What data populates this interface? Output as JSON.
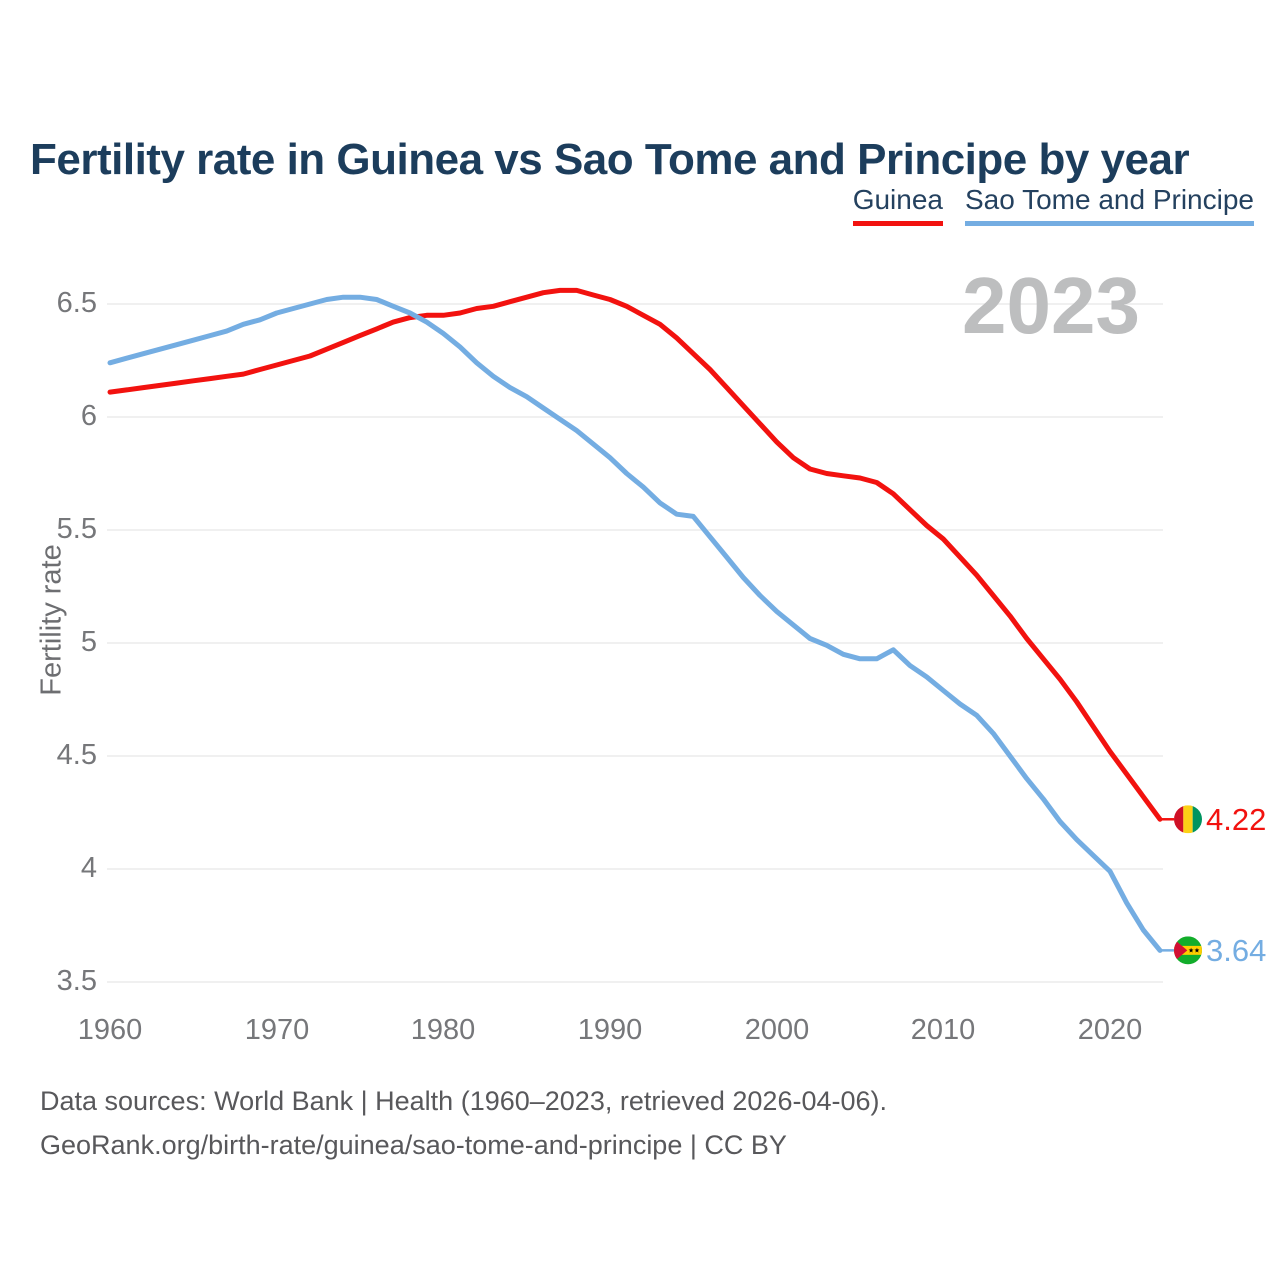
{
  "title": "Fertility rate in Guinea vs Sao Tome and Principe by year",
  "watermark": "2023",
  "legend": {
    "items": [
      {
        "label": "Guinea",
        "color": "#f2120f"
      },
      {
        "label": "Sao Tome and Principe",
        "color": "#74ade2"
      }
    ]
  },
  "axis": {
    "y_label": "Fertility rate",
    "y_ticks": [
      "6.5",
      "6",
      "5.5",
      "5",
      "4.5",
      "4",
      "3.5"
    ],
    "x_ticks": [
      "1960",
      "1970",
      "1980",
      "1990",
      "2000",
      "2010",
      "2020"
    ]
  },
  "end_labels": {
    "guinea": "4.22",
    "sao_tome": "3.64"
  },
  "icons": {
    "guinea_flag": {
      "name": "guinea-flag-icon",
      "red": "#ce1126",
      "yellow": "#fcd116",
      "green": "#009460"
    },
    "sao_tome_flag": {
      "name": "sao-tome-flag-icon",
      "green": "#12ad2b",
      "yellow": "#ffce00",
      "red": "#d21034",
      "star": "#000000"
    }
  },
  "footer": {
    "line1": "Data sources: World Bank | Health (1960–2023, retrieved 2026-04-06).",
    "line2": "GeoRank.org/birth-rate/guinea/sao-tome-and-principe | CC BY"
  },
  "chart_data": {
    "type": "line",
    "title": "Fertility rate in Guinea vs Sao Tome and Principe by year",
    "xlabel": "",
    "ylabel": "Fertility rate",
    "ylim": [
      3.5,
      6.5
    ],
    "x_range": [
      1960,
      2023
    ],
    "grid": "horizontal",
    "legend_position": "top-right",
    "x": [
      1960,
      1961,
      1962,
      1963,
      1964,
      1965,
      1966,
      1967,
      1968,
      1969,
      1970,
      1971,
      1972,
      1973,
      1974,
      1975,
      1976,
      1977,
      1978,
      1979,
      1980,
      1981,
      1982,
      1983,
      1984,
      1985,
      1986,
      1987,
      1988,
      1989,
      1990,
      1991,
      1992,
      1993,
      1994,
      1995,
      1996,
      1997,
      1998,
      1999,
      2000,
      2001,
      2002,
      2003,
      2004,
      2005,
      2006,
      2007,
      2008,
      2009,
      2010,
      2011,
      2012,
      2013,
      2014,
      2015,
      2016,
      2017,
      2018,
      2019,
      2020,
      2021,
      2022,
      2023
    ],
    "series": [
      {
        "name": "Guinea",
        "color": "#f2120f",
        "end_label": "4.22",
        "values": [
          6.11,
          6.12,
          6.13,
          6.14,
          6.15,
          6.16,
          6.17,
          6.18,
          6.19,
          6.21,
          6.23,
          6.25,
          6.27,
          6.3,
          6.33,
          6.36,
          6.39,
          6.42,
          6.44,
          6.45,
          6.45,
          6.46,
          6.48,
          6.49,
          6.51,
          6.53,
          6.55,
          6.56,
          6.56,
          6.54,
          6.52,
          6.49,
          6.45,
          6.41,
          6.35,
          6.28,
          6.21,
          6.13,
          6.05,
          5.97,
          5.89,
          5.82,
          5.77,
          5.75,
          5.74,
          5.73,
          5.71,
          5.66,
          5.59,
          5.52,
          5.46,
          5.38,
          5.3,
          5.21,
          5.12,
          5.02,
          4.93,
          4.84,
          4.74,
          4.63,
          4.52,
          4.42,
          4.32,
          4.22
        ]
      },
      {
        "name": "Sao Tome and Principe",
        "color": "#74ade2",
        "end_label": "3.64",
        "values": [
          6.24,
          6.26,
          6.28,
          6.3,
          6.32,
          6.34,
          6.36,
          6.38,
          6.41,
          6.43,
          6.46,
          6.48,
          6.5,
          6.52,
          6.53,
          6.53,
          6.52,
          6.49,
          6.46,
          6.42,
          6.37,
          6.31,
          6.24,
          6.18,
          6.13,
          6.09,
          6.04,
          5.99,
          5.94,
          5.88,
          5.82,
          5.75,
          5.69,
          5.62,
          5.57,
          5.56,
          5.47,
          5.38,
          5.29,
          5.21,
          5.14,
          5.08,
          5.02,
          4.99,
          4.95,
          4.93,
          4.93,
          4.97,
          4.9,
          4.85,
          4.79,
          4.73,
          4.68,
          4.6,
          4.5,
          4.4,
          4.31,
          4.21,
          4.13,
          4.06,
          3.99,
          3.85,
          3.73,
          3.64
        ]
      }
    ]
  }
}
